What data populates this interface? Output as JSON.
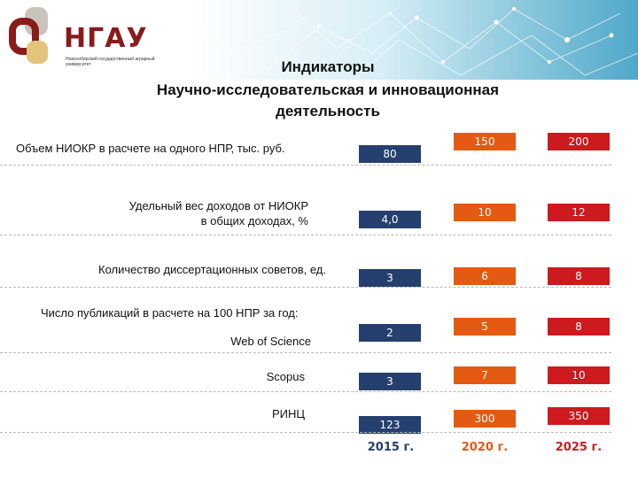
{
  "logo": {
    "name": "НГАУ",
    "subtitle": "Новосибирский государственный аграрный университет"
  },
  "title": {
    "line1": "Индикаторы",
    "line2": "Научно-исследовательская и инновационная",
    "line3": "деятельность"
  },
  "years": [
    "2015 г.",
    "2020 г.",
    "2025 г."
  ],
  "colors": {
    "year_2015": "#25406e",
    "year_2020": "#e45a12",
    "year_2025": "#cc1a1f",
    "logo": "#8a1b1b"
  },
  "rows": [
    {
      "label": "Объем НИОКР в расчете на одного НПР, тыс. руб.",
      "values": [
        "80",
        "150",
        "200"
      ]
    },
    {
      "label_line1": "Удельный вес доходов от НИОКР",
      "label_line2": "в общих доходах, %",
      "values": [
        "4,0",
        "10",
        "12"
      ]
    },
    {
      "label": "Количество диссертационных советов, ед.",
      "values": [
        "3",
        "6",
        "8"
      ]
    },
    {
      "section": "Число публикаций в расчете на 100 НПР за год:"
    },
    {
      "label": "Web of Science",
      "values": [
        "2",
        "5",
        "8"
      ]
    },
    {
      "label": "Scopus",
      "values": [
        "3",
        "7",
        "10"
      ]
    },
    {
      "label": "РИНЦ",
      "values": [
        "123",
        "300",
        "350"
      ]
    }
  ]
}
